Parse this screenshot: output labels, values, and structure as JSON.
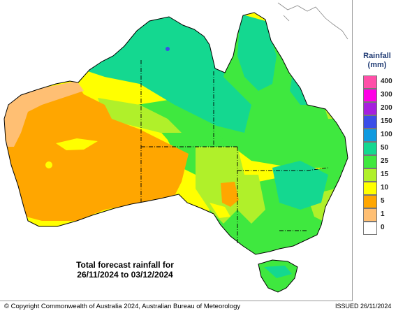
{
  "caption": {
    "line1": "Total forecast rainfall for",
    "line2": "26/11/2024 to 03/12/2024"
  },
  "legend": {
    "title": "Rainfall",
    "units": "(mm)",
    "items": [
      {
        "label": "400",
        "color": "#ff4fa8"
      },
      {
        "label": "300",
        "color": "#ff00e6"
      },
      {
        "label": "200",
        "color": "#a61fde"
      },
      {
        "label": "150",
        "color": "#3b4ee8"
      },
      {
        "label": "100",
        "color": "#0f9ae0"
      },
      {
        "label": "50",
        "color": "#14d890"
      },
      {
        "label": "25",
        "color": "#3fe83f"
      },
      {
        "label": "15",
        "color": "#b0f02a"
      },
      {
        "label": "10",
        "color": "#ffff00"
      },
      {
        "label": "5",
        "color": "#ffa600"
      },
      {
        "label": "1",
        "color": "#ffbf73"
      },
      {
        "label": "0",
        "color": "#ffffff"
      }
    ]
  },
  "footer": {
    "copyright": "© Copyright Commonwealth of Australia 2024, Australian Bureau of Meteorology",
    "issued": "ISSUED 26/11/2024"
  }
}
